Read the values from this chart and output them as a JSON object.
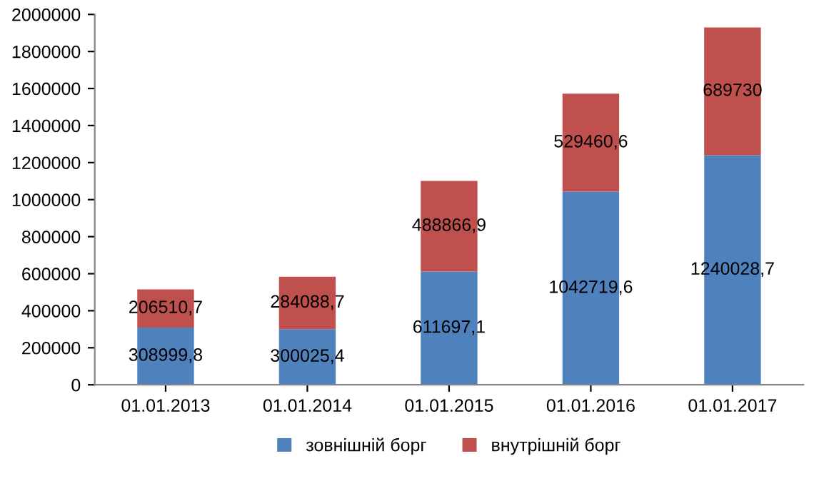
{
  "chart_data": {
    "type": "bar",
    "stacked": true,
    "categories": [
      "01.01.2013",
      "01.01.2014",
      "01.01.2015",
      "01.01.2016",
      "01.01.2017"
    ],
    "series": [
      {
        "name": "зовнішній борг",
        "color": "#4f81bd",
        "values": [
          308999.8,
          300025.4,
          611697.1,
          1042719.6,
          1240028.7
        ],
        "value_labels": [
          "308999,8",
          "300025,4",
          "611697,1",
          "1042719,6",
          "1240028,7"
        ]
      },
      {
        "name": "внутрішній борг",
        "color": "#c0504d",
        "values": [
          206510.7,
          284088.7,
          488866.9,
          529460.6,
          689730
        ],
        "value_labels": [
          "206510,7",
          "284088,7",
          "488866,9",
          "529460,6",
          "689730"
        ]
      }
    ],
    "ylim": [
      0,
      2000000
    ],
    "yticks": [
      0,
      200000,
      400000,
      600000,
      800000,
      1000000,
      1200000,
      1400000,
      1600000,
      1800000,
      2000000
    ],
    "grid": false,
    "legend": "bottom"
  }
}
